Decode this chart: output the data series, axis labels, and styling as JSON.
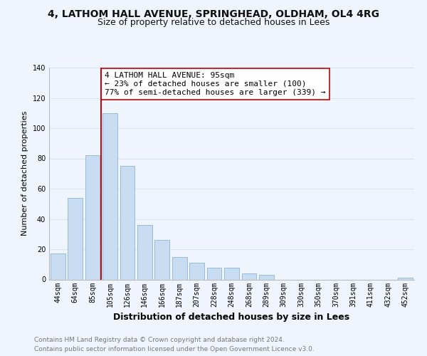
{
  "title1": "4, LATHOM HALL AVENUE, SPRINGHEAD, OLDHAM, OL4 4RG",
  "title2": "Size of property relative to detached houses in Lees",
  "xlabel": "Distribution of detached houses by size in Lees",
  "ylabel": "Number of detached properties",
  "bar_labels": [
    "44sqm",
    "64sqm",
    "85sqm",
    "105sqm",
    "126sqm",
    "146sqm",
    "166sqm",
    "187sqm",
    "207sqm",
    "228sqm",
    "248sqm",
    "268sqm",
    "289sqm",
    "309sqm",
    "330sqm",
    "350sqm",
    "370sqm",
    "391sqm",
    "411sqm",
    "432sqm",
    "452sqm"
  ],
  "bar_values": [
    17,
    54,
    82,
    110,
    75,
    36,
    26,
    15,
    11,
    8,
    8,
    4,
    3,
    0,
    0,
    0,
    0,
    0,
    0,
    0,
    1
  ],
  "bar_color": "#c8ddf2",
  "bar_edge_color": "#8ab4d8",
  "vline_color": "#cc0000",
  "annotation_text": "4 LATHOM HALL AVENUE: 95sqm\n← 23% of detached houses are smaller (100)\n77% of semi-detached houses are larger (339) →",
  "annotation_box_color": "#ffffff",
  "annotation_box_edge": "#cc0000",
  "ylim": [
    0,
    140
  ],
  "yticks": [
    0,
    20,
    40,
    60,
    80,
    100,
    120,
    140
  ],
  "footer1": "Contains HM Land Registry data © Crown copyright and database right 2024.",
  "footer2": "Contains public sector information licensed under the Open Government Licence v3.0.",
  "bg_color": "#f0f4fc",
  "grid_color": "#d5e3f0",
  "title1_fontsize": 10,
  "title2_fontsize": 9,
  "ylabel_fontsize": 8,
  "xlabel_fontsize": 9,
  "tick_fontsize": 7,
  "annotation_fontsize": 8,
  "footer_fontsize": 6.5
}
